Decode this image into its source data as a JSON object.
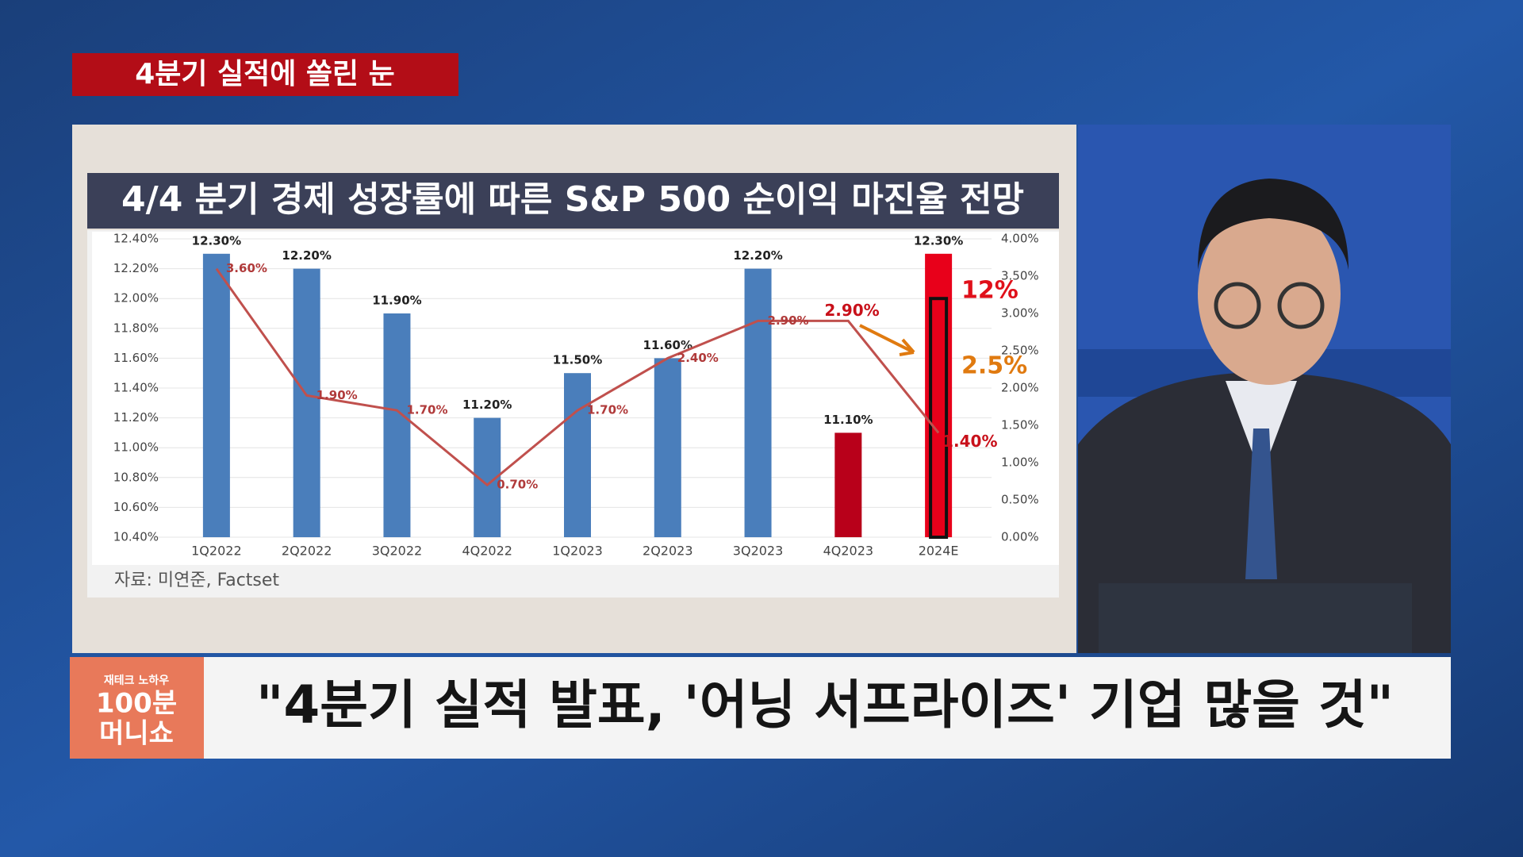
{
  "banner": "4분기 실적에 쏠린 눈",
  "caption": "\"4분기 실적 발표, '어닝 서프라이즈' 기업 많을 것\"",
  "logo": {
    "top": "재테크 노하우",
    "line1": "100분",
    "line2": "머니쇼"
  },
  "source": "자료: 미연준, Factset",
  "chart_data": {
    "type": "bar-line",
    "title": "4/4 분기 경제 성장률에 따른 S&P 500 순이익 마진율 전망",
    "categories": [
      "1Q2022",
      "2Q2022",
      "3Q2022",
      "4Q2022",
      "1Q2023",
      "2Q2023",
      "3Q2023",
      "4Q2023",
      "2024E"
    ],
    "series": [
      {
        "color": "#4a7ebb",
        "colors": [
          "#4a7ebb",
          "#4a7ebb",
          "#4a7ebb",
          "#4a7ebb",
          "#4a7ebb",
          "#4a7ebb",
          "#4a7ebb",
          "#b8001a",
          "#e8001a"
        ],
        "values": [
          12.3,
          12.2,
          11.9,
          11.2,
          11.5,
          11.6,
          12.2,
          11.1,
          12.3
        ],
        "value_labels": [
          "12.30%",
          "12.20%",
          "11.90%",
          "11.20%",
          "11.50%",
          "11.60%",
          "12.20%",
          "11.10%",
          "12.30%"
        ]
      },
      {
        "color": "#c0504d",
        "axis": "y2",
        "values": [
          3.6,
          1.9,
          1.7,
          0.7,
          1.7,
          2.4,
          2.9,
          2.9,
          1.4
        ],
        "value_labels": [
          "3.60%",
          "1.90%",
          "1.70%",
          "0.70%",
          "1.70%",
          "2.40%",
          "2.90%",
          "2.90%",
          "1.40%"
        ]
      }
    ],
    "ylim": [
      10.4,
      12.4
    ],
    "yticks": [
      {
        "value": 10.4,
        "label": "10.40%"
      },
      {
        "value": 10.6,
        "label": "10.60%"
      },
      {
        "value": 10.8,
        "label": "10.80%"
      },
      {
        "value": 11.0,
        "label": "11.00%"
      },
      {
        "value": 11.2,
        "label": "11.20%"
      },
      {
        "value": 11.4,
        "label": "11.40%"
      },
      {
        "value": 11.6,
        "label": "11.60%"
      },
      {
        "value": 11.8,
        "label": "11.80%"
      },
      {
        "value": 12.0,
        "label": "12.00%"
      },
      {
        "value": 12.2,
        "label": "12.20%"
      },
      {
        "value": 12.4,
        "label": "12.40%"
      }
    ],
    "y2lim": [
      0,
      4
    ],
    "y2ticks": [
      {
        "value": 0,
        "label": "0.00%"
      },
      {
        "value": 0.5,
        "label": "0.50%"
      },
      {
        "value": 1,
        "label": "1.00%"
      },
      {
        "value": 1.5,
        "label": "1.50%"
      },
      {
        "value": 2,
        "label": "2.00%"
      },
      {
        "value": 2.5,
        "label": "2.50%"
      },
      {
        "value": 3,
        "label": "3.00%"
      },
      {
        "value": 3.5,
        "label": "3.50%"
      },
      {
        "value": 4,
        "label": "4.00%"
      }
    ],
    "grid": true,
    "annotations": [
      {
        "text": "12%",
        "color": "#e0101a"
      },
      {
        "text": "2.5%",
        "color": "#e07a10"
      }
    ]
  }
}
